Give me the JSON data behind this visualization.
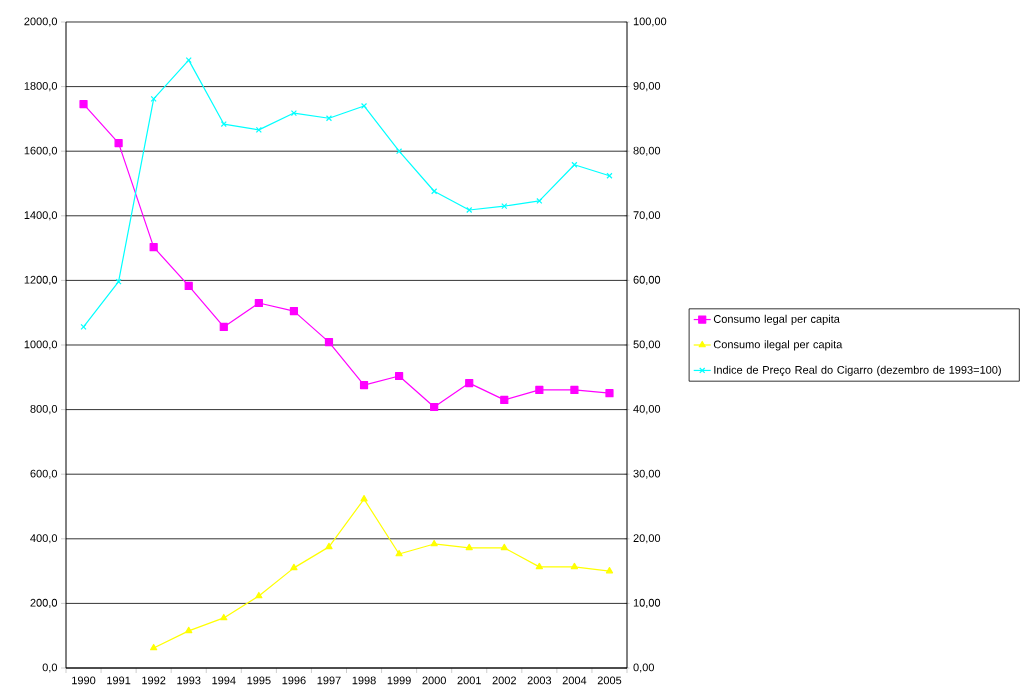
{
  "chart_data": {
    "type": "line",
    "categories": [
      "1990",
      "1991",
      "1992",
      "1993",
      "1994",
      "1995",
      "1996",
      "1997",
      "1998",
      "1999",
      "2000",
      "2001",
      "2002",
      "2003",
      "2004",
      "2005"
    ],
    "series": [
      {
        "name": "Consumo legal per capita",
        "color": "#ff00ff",
        "marker": "square",
        "values": [
          1746,
          1625,
          1303,
          1183,
          1056,
          1130,
          1105,
          1009,
          876,
          904,
          808,
          882,
          830,
          861,
          861,
          851
        ]
      },
      {
        "name": "Consumo ilegal per capita",
        "color": "#ffff00",
        "marker": "triangle",
        "values": [
          null,
          null,
          62,
          115,
          155,
          223,
          310,
          375,
          523,
          353,
          384,
          372,
          372,
          313,
          313,
          300
        ]
      },
      {
        "name": "Indice de Preço Real do Cigarro (dezembro de 1993=100)",
        "color": "#00ffff",
        "marker": "cross",
        "axis": "y2",
        "values": [
          52.8,
          59.8,
          88.1,
          94.1,
          84.2,
          83.3,
          85.9,
          85.1,
          87.0,
          80.0,
          73.8,
          70.9,
          71.5,
          72.3,
          77.9,
          76.2
        ]
      }
    ],
    "ylim": [
      0,
      2000
    ],
    "yticks": [
      {
        "value": 0,
        "label": "0,0"
      },
      {
        "value": 200,
        "label": "200,0"
      },
      {
        "value": 400,
        "label": "400,0"
      },
      {
        "value": 600,
        "label": "600,0"
      },
      {
        "value": 800,
        "label": "800,0"
      },
      {
        "value": 1000,
        "label": "1000,0"
      },
      {
        "value": 1200,
        "label": "1200,0"
      },
      {
        "value": 1400,
        "label": "1400,0"
      },
      {
        "value": 1600,
        "label": "1600,0"
      },
      {
        "value": 1800,
        "label": "1800,0"
      },
      {
        "value": 2000,
        "label": "2000,0"
      }
    ],
    "y2lim": [
      0,
      100
    ],
    "y2ticks": [
      {
        "value": 0,
        "label": "0,00"
      },
      {
        "value": 10,
        "label": "10,00"
      },
      {
        "value": 20,
        "label": "20,00"
      },
      {
        "value": 30,
        "label": "30,00"
      },
      {
        "value": 40,
        "label": "40,00"
      },
      {
        "value": 50,
        "label": "50,00"
      },
      {
        "value": 60,
        "label": "60,00"
      },
      {
        "value": 70,
        "label": "70,00"
      },
      {
        "value": 80,
        "label": "80,00"
      },
      {
        "value": 90,
        "label": "90,00"
      },
      {
        "value": 100,
        "label": "100,00"
      }
    ],
    "grid": "y",
    "legend": "right",
    "line_style": "solid"
  }
}
